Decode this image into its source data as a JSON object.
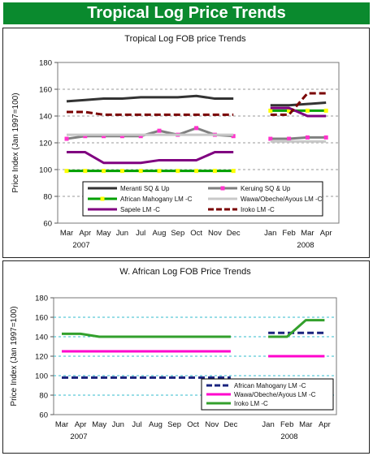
{
  "header": {
    "title": "Tropical Log Price Trends"
  },
  "chart_data": [
    {
      "type": "line",
      "title": "Tropical Log FOB price Trends",
      "ylabel": "Price Index (Jan 1997=100)",
      "ylim": [
        60,
        180
      ],
      "yticks": [
        60,
        80,
        100,
        120,
        140,
        160,
        180
      ],
      "grid": true,
      "legend_position": "bottom-inside",
      "categories": [
        "Mar",
        "Apr",
        "May",
        "Jun",
        "Jul",
        "Aug",
        "Sep",
        "Oct",
        "Nov",
        "Dec",
        "",
        "Jan",
        "Feb",
        "Mar",
        "Apr"
      ],
      "year_labels": [
        "2007",
        "2008"
      ],
      "series": [
        {
          "name": "Meranti SQ & Up",
          "color": "#333333",
          "marker": "none",
          "dash": "solid",
          "values": [
            151,
            152,
            153,
            153,
            154,
            154,
            154,
            155,
            153,
            153,
            null,
            148,
            148,
            149,
            150
          ]
        },
        {
          "name": "Keruing SQ & Up",
          "color": "#808080",
          "marker": "square",
          "marker_color": "#ff33cc",
          "dash": "solid",
          "values": [
            123,
            125,
            125,
            125,
            125,
            129,
            126,
            131,
            126,
            125,
            null,
            123,
            123,
            124,
            124
          ]
        },
        {
          "name": "African Mahogany LM -C",
          "color": "#00a000",
          "marker": "square",
          "marker_color": "#ffff00",
          "dash": "solid",
          "values": [
            99,
            99,
            99,
            99,
            99,
            99,
            99,
            99,
            99,
            99,
            null,
            144,
            144,
            144,
            144
          ]
        },
        {
          "name": "Wawa/Obeche/Ayous LM -C",
          "color": "#c8c8c8",
          "marker": "none",
          "dash": "solid",
          "values": [
            126,
            126,
            126,
            126,
            126,
            126,
            126,
            126,
            126,
            126,
            null,
            121,
            121,
            121,
            121
          ]
        },
        {
          "name": "Sapele LM -C",
          "color": "#800080",
          "marker": "none",
          "dash": "solid",
          "values": [
            113,
            113,
            105,
            105,
            105,
            107,
            107,
            107,
            113,
            113,
            null,
            146,
            146,
            140,
            140
          ]
        },
        {
          "name": "Iroko LM -C",
          "color": "#7a0000",
          "marker": "none",
          "dash": "dashed",
          "values": [
            143,
            143,
            141,
            141,
            141,
            141,
            141,
            141,
            141,
            141,
            null,
            141,
            141,
            157,
            157
          ]
        }
      ]
    },
    {
      "type": "line",
      "title": "W. African Log FOB Price Trends",
      "ylabel": "Price Index (Jan 1997=100)",
      "ylim": [
        60,
        180
      ],
      "yticks": [
        60,
        80,
        100,
        120,
        140,
        160,
        180
      ],
      "grid": true,
      "legend_position": "bottom-right-inside",
      "categories": [
        "Mar",
        "Apr",
        "May",
        "Jun",
        "Jul",
        "Aug",
        "Sep",
        "Oct",
        "Nov",
        "Dec",
        "",
        "Jan",
        "Feb",
        "Mar",
        "Apr"
      ],
      "year_labels": [
        "2007",
        "2008"
      ],
      "series": [
        {
          "name": "African Mahogany LM -C",
          "color": "#1a237e",
          "marker": "none",
          "dash": "dashed",
          "values": [
            98,
            98,
            98,
            98,
            98,
            98,
            98,
            98,
            98,
            98,
            null,
            144,
            144,
            144,
            144
          ]
        },
        {
          "name": "Wawa/Obeche/Ayous LM -C",
          "color": "#ff00cc",
          "marker": "none",
          "dash": "solid",
          "values": [
            125,
            125,
            125,
            125,
            125,
            125,
            125,
            125,
            125,
            125,
            null,
            120,
            120,
            120,
            120
          ]
        },
        {
          "name": "Iroko LM -C",
          "color": "#33a02c",
          "marker": "none",
          "dash": "solid",
          "values": [
            143,
            143,
            140,
            140,
            140,
            140,
            140,
            140,
            140,
            140,
            null,
            140,
            140,
            157,
            157
          ]
        }
      ]
    }
  ]
}
